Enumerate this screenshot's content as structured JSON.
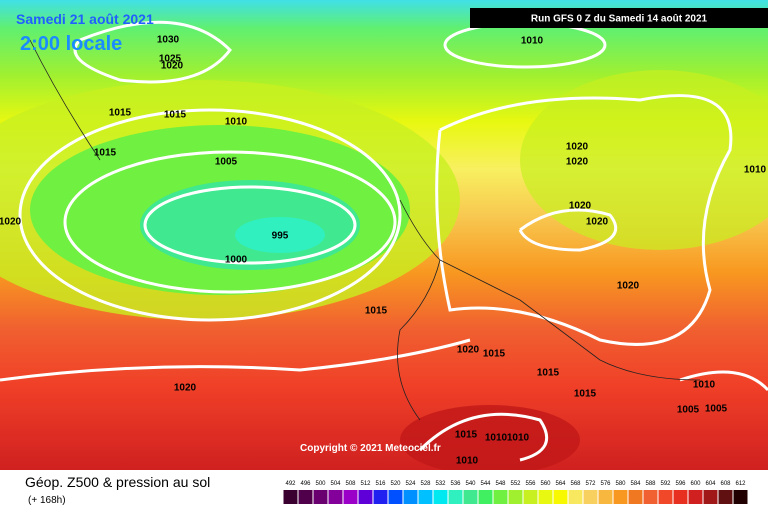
{
  "header": {
    "date": "Samedi 21 août 2021",
    "time": "2:00 locale",
    "run": "Run GFS 0 Z du Samedi 14 août 2021"
  },
  "isobar_labels": [
    "1030",
    "1025",
    "1020",
    "1015",
    "1015",
    "1010",
    "1015",
    "1005",
    "995",
    "1000",
    "1020",
    "1010",
    "1020",
    "1020",
    "1010",
    "1020",
    "1020",
    "1020",
    "1015",
    "1020",
    "1015",
    "1015",
    "1015",
    "1020",
    "1010",
    "1005",
    "1005",
    "1015",
    "1010",
    "1010",
    "1010"
  ],
  "copyright": "Copyright © 2021 Meteociel.fr",
  "footer": {
    "title": "Géop. Z500 & pression au sol",
    "lead": "(+ 168h)"
  },
  "scale": {
    "labels": [
      492,
      496,
      500,
      504,
      508,
      512,
      516,
      520,
      524,
      528,
      532,
      536,
      540,
      544,
      548,
      552,
      556,
      560,
      564,
      568,
      572,
      576,
      580,
      584,
      588,
      592,
      596,
      600,
      604,
      608,
      612
    ],
    "colors": [
      "#3a0030",
      "#50004a",
      "#6a0070",
      "#84009a",
      "#9a00c8",
      "#6000d8",
      "#2020f0",
      "#0050ff",
      "#0090ff",
      "#00c0ff",
      "#00e8f0",
      "#30f0c0",
      "#40e890",
      "#40f060",
      "#70f040",
      "#a0f030",
      "#c8f020",
      "#e8f810",
      "#f8f800",
      "#f8e860",
      "#f8d060",
      "#f8b840",
      "#f89820",
      "#f07820",
      "#f06030",
      "#f04828",
      "#e83020",
      "#d02020",
      "#a01818",
      "#601010",
      "#200000"
    ]
  }
}
